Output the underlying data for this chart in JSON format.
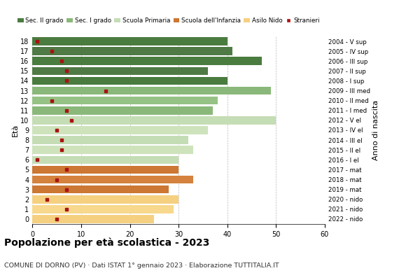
{
  "ages": [
    0,
    1,
    2,
    3,
    4,
    5,
    6,
    7,
    8,
    9,
    10,
    11,
    12,
    13,
    14,
    15,
    16,
    17,
    18
  ],
  "bar_values": [
    25,
    29,
    30,
    28,
    33,
    30,
    30,
    33,
    32,
    36,
    50,
    37,
    38,
    49,
    40,
    36,
    47,
    41,
    40
  ],
  "stranieri_values": [
    5,
    7,
    3,
    7,
    5,
    7,
    1,
    6,
    6,
    5,
    8,
    7,
    4,
    15,
    7,
    7,
    6,
    4,
    1
  ],
  "right_labels": [
    "2022 - nido",
    "2021 - nido",
    "2020 - nido",
    "2019 - mat",
    "2018 - mat",
    "2017 - mat",
    "2016 - I el",
    "2015 - II el",
    "2014 - III el",
    "2013 - IV el",
    "2012 - V el",
    "2011 - I med",
    "2010 - II med",
    "2009 - III med",
    "2008 - I sup",
    "2007 - II sup",
    "2006 - III sup",
    "2005 - IV sup",
    "2004 - V sup"
  ],
  "bar_colors": [
    "#f5d080",
    "#f7d88d",
    "#f5d080",
    "#cc7733",
    "#d4823d",
    "#cc7733",
    "#c5ddb5",
    "#cee3bc",
    "#c5ddb5",
    "#cee3bc",
    "#c5ddb5",
    "#8ab87a",
    "#96c285",
    "#8ab87a",
    "#4a7c3f",
    "#507a45",
    "#4a7c3f",
    "#507a45",
    "#4a7c3f"
  ],
  "legend_labels": [
    "Sec. II grado",
    "Sec. I grado",
    "Scuola Primaria",
    "Scuola dell'Infanzia",
    "Asilo Nido",
    "Stranieri"
  ],
  "legend_colors": [
    "#4a7c3f",
    "#8ab87a",
    "#c5ddb5",
    "#cc7733",
    "#f5d080",
    "#aa1111"
  ],
  "title": "Popolazione per età scolastica - 2023",
  "subtitle": "COMUNE DI DORNO (PV) · Dati ISTAT 1° gennaio 2023 · Elaborazione TUTTITALIA.IT",
  "ylabel_left": "Età",
  "ylabel_right": "Anno di nascita",
  "xlim": [
    0,
    60
  ],
  "xticks": [
    0,
    10,
    20,
    30,
    40,
    50,
    60
  ],
  "stranieri_color": "#aa1111",
  "grid_color": "#aaaaaa"
}
